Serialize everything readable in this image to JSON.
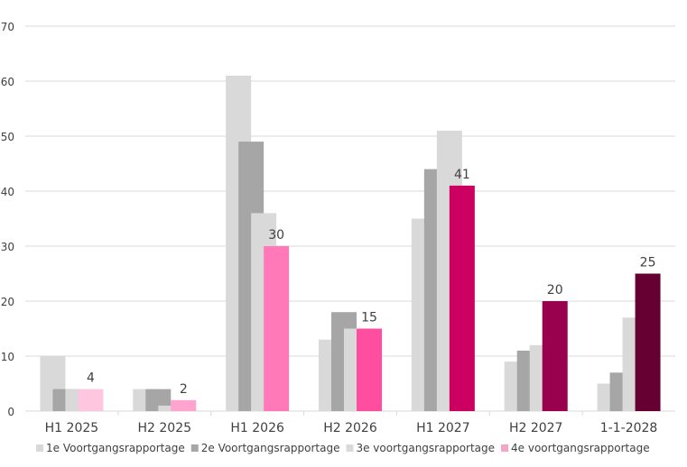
{
  "chart_data": {
    "type": "bar",
    "title": "",
    "xlabel": "",
    "ylabel": "",
    "ylim": [
      0,
      70
    ],
    "yticks": [
      0,
      10,
      20,
      30,
      40,
      50,
      60,
      70
    ],
    "grid": true,
    "legend_placement": "bottom",
    "categories": [
      "H1 2025",
      "H2 2025",
      "H1 2026",
      "H2 2026",
      "H1 2027",
      "H2 2027",
      "1-1-2028"
    ],
    "series": [
      {
        "name": "1e Voortgangsrapportage",
        "color": "#d9d9d9",
        "values": [
          10,
          4,
          61,
          13,
          35,
          9,
          5
        ]
      },
      {
        "name": "2e Voortgangsrapportage",
        "color": "#a6a6a6",
        "values": [
          4,
          4,
          49,
          18,
          44,
          11,
          7
        ]
      },
      {
        "name": "3e voortgangsrapportage",
        "color": "#d9d9d9",
        "values": [
          4,
          1,
          36,
          15,
          51,
          12,
          17
        ]
      },
      {
        "name": "4e voortgangsrapportage",
        "color": "#f4a6c8",
        "values": [
          4,
          2,
          30,
          15,
          41,
          20,
          25
        ],
        "point_colors": [
          "#ffc6e0",
          "#ffa3cf",
          "#ff79b8",
          "#ff4d9f",
          "#cc0060",
          "#99004d",
          "#660033"
        ],
        "data_labels": [
          "4",
          "2",
          "30",
          "15",
          "41",
          "20",
          "25"
        ]
      }
    ]
  }
}
